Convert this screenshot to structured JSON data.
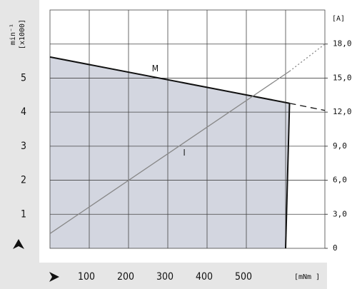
{
  "chart_data": {
    "type": "line",
    "x_label": "[mNm ]",
    "y_label": "min⁻¹",
    "y_label_unit": "[x1000]",
    "y2_label": "[A]",
    "xlim": [
      0,
      700
    ],
    "ylim": [
      0,
      7
    ],
    "y2lim": [
      0,
      21
    ],
    "xticks": [
      {
        "value": 100,
        "label": "100"
      },
      {
        "value": 200,
        "label": "200"
      },
      {
        "value": 300,
        "label": "300"
      },
      {
        "value": 400,
        "label": "400"
      },
      {
        "value": 500,
        "label": "500"
      },
      {
        "value": 600,
        "label": null
      }
    ],
    "yticks": [
      1,
      2,
      3,
      4,
      5,
      {
        "value": 6,
        "label": null
      }
    ],
    "y2ticks": [
      0,
      {
        "value": 3,
        "label": "3,0"
      },
      {
        "value": 6,
        "label": "6,0"
      },
      {
        "value": 9,
        "label": "9,0"
      },
      {
        "value": 12,
        "label": "12,0"
      },
      {
        "value": 15,
        "label": "15,0"
      },
      {
        "value": 18,
        "label": "18,0"
      }
    ],
    "grid": true,
    "fill": "#d3d6e0",
    "series": [
      {
        "name": "M",
        "color": "#111111",
        "width": 2,
        "x": [
          0,
          610,
          700
        ],
        "values": [
          5.62,
          4.26,
          4.05
        ],
        "segment_styles": [
          "solid",
          "dashed"
        ]
      },
      {
        "name": "I",
        "color": "#888888",
        "width": 1.3,
        "axis": "y2",
        "x": [
          0,
          610,
          700
        ],
        "values": [
          1.3,
          15.6,
          18.0
        ],
        "segment_styles": [
          "solid",
          "dotted"
        ]
      }
    ],
    "limit_line": {
      "color": "#111111",
      "x": [
        610,
        600
      ],
      "values": [
        4.26,
        0
      ]
    },
    "annotations": [
      {
        "text": "M",
        "x": 268,
        "y": 5.27
      },
      {
        "text": "I",
        "x": 342,
        "y": 2.8
      }
    ]
  }
}
